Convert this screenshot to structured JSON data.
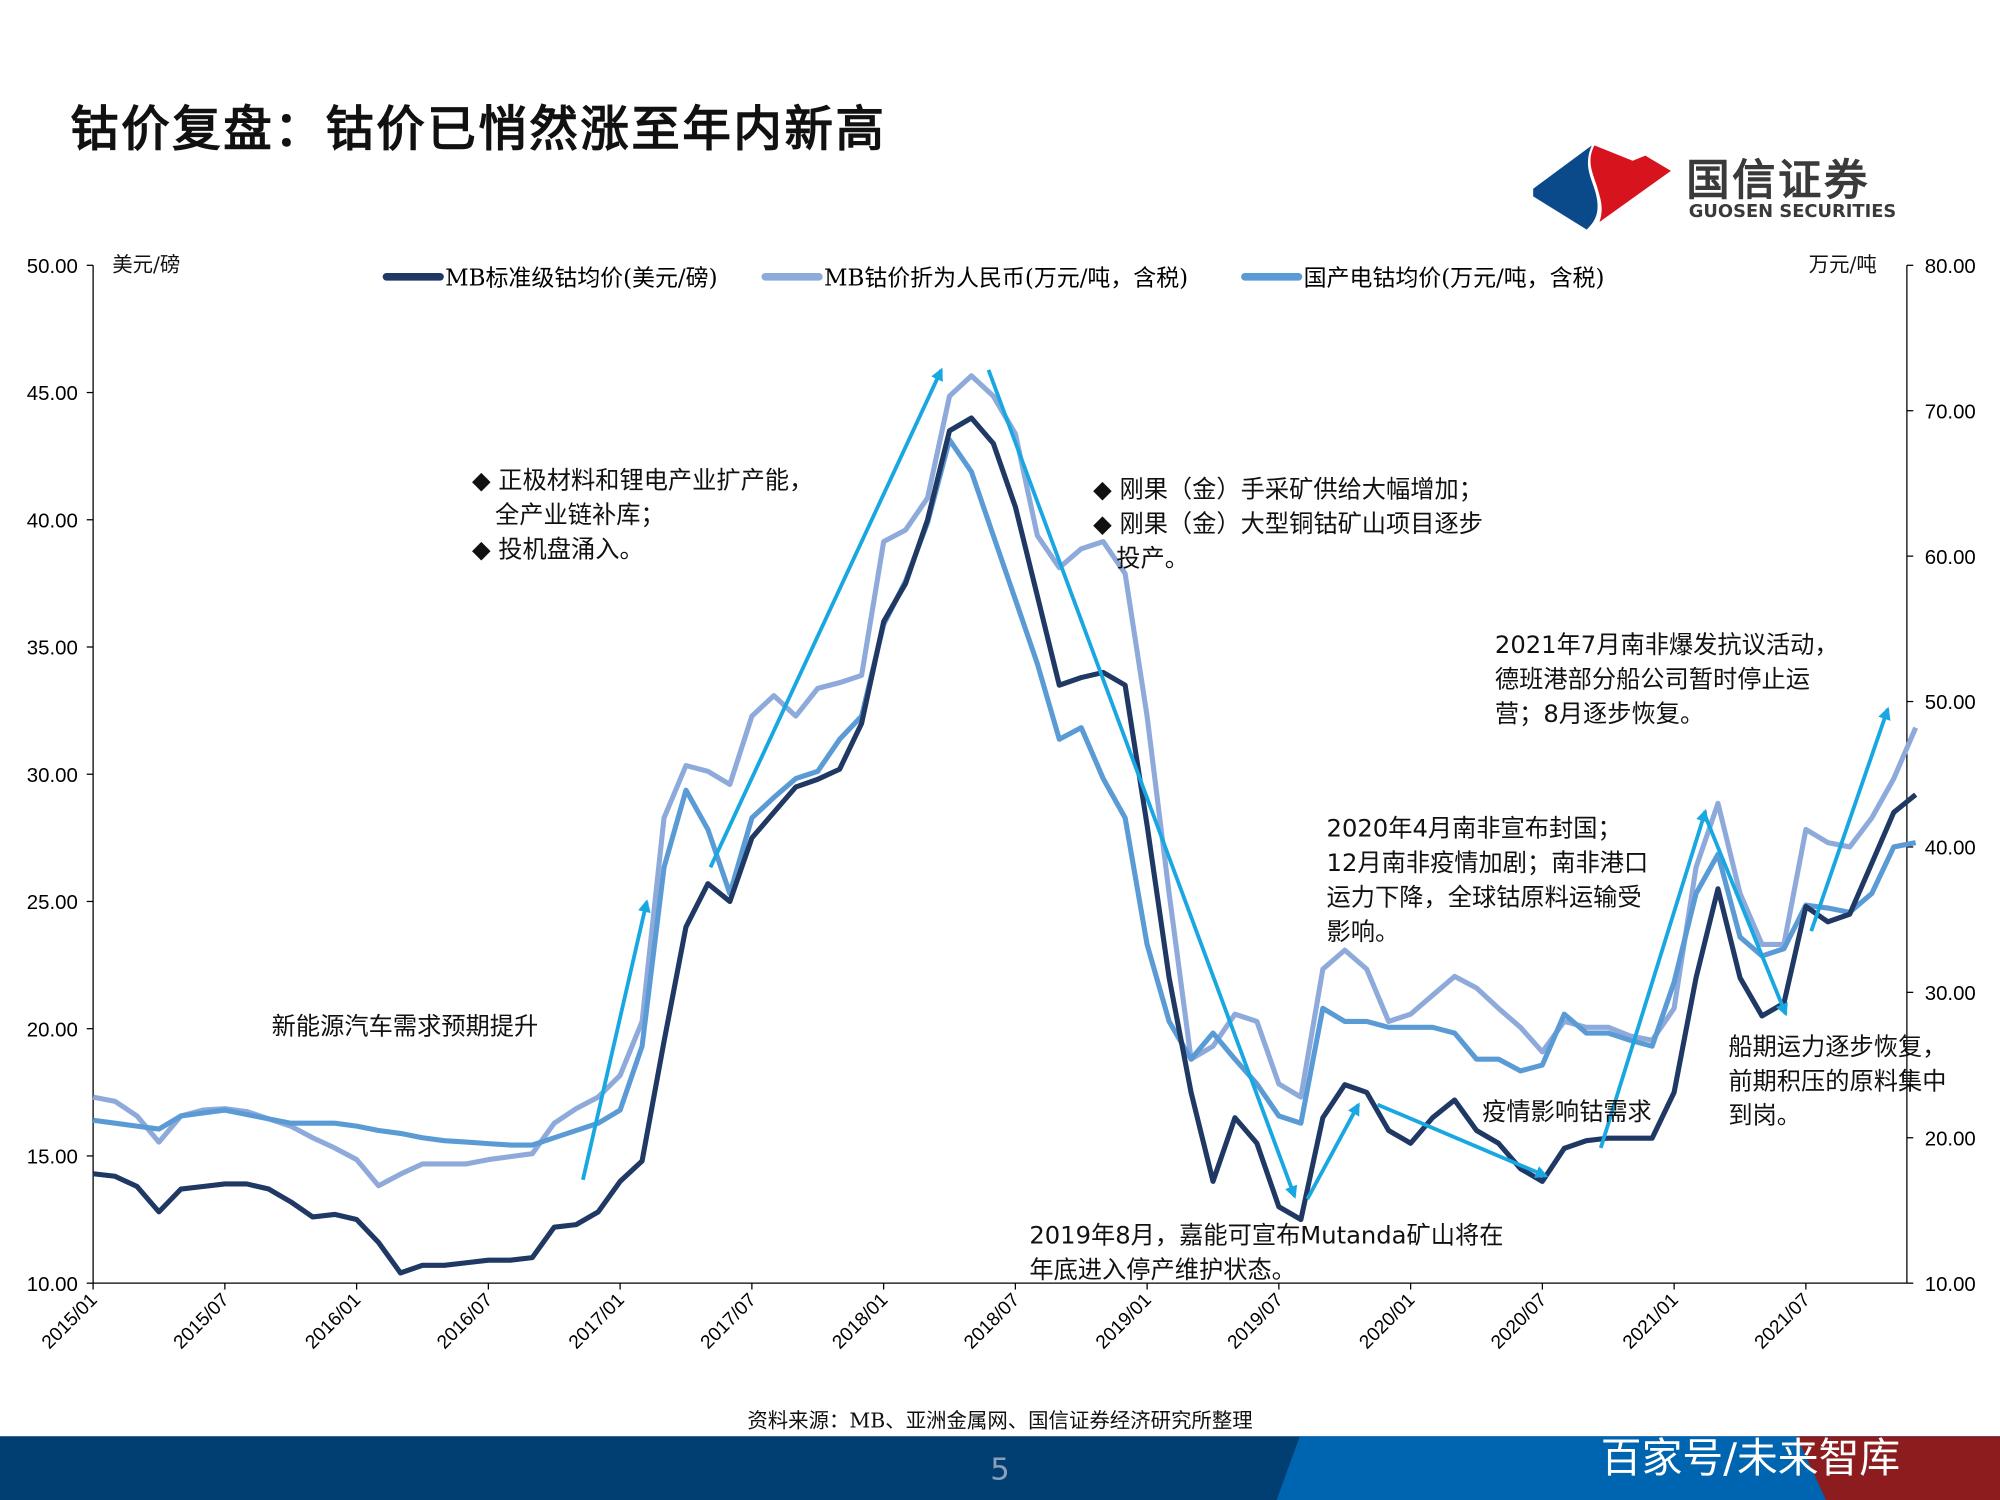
{
  "title": "钴价复盘：钴价已悄然涨至年内新高",
  "logo": {
    "cn": "国信证券",
    "en": "GUOSEN SECURITIES",
    "colors": {
      "blue": "#0b4a8a",
      "red": "#d7141d"
    }
  },
  "source": "资料来源：MB、亚洲金属网、国信证券经济研究所整理",
  "page_number": "5",
  "watermark": "百家号/未来智库",
  "chart_data": {
    "type": "line",
    "title": "",
    "ylabel_left": "美元/磅",
    "ylabel_right": "万元/吨",
    "ylim_left": [
      10,
      50
    ],
    "ylim_right": [
      10,
      80
    ],
    "yticks_left": [
      "10.00",
      "15.00",
      "20.00",
      "25.00",
      "30.00",
      "35.00",
      "40.00",
      "45.00",
      "50.00"
    ],
    "yticks_right": [
      "10.00",
      "20.00",
      "30.00",
      "40.00",
      "50.00",
      "60.00",
      "70.00",
      "80.00"
    ],
    "xlim": [
      "2015/01",
      "2021/12"
    ],
    "xticks": [
      "2015/01",
      "2015/07",
      "2016/01",
      "2016/07",
      "2017/01",
      "2017/07",
      "2018/01",
      "2018/07",
      "2019/01",
      "2019/07",
      "2020/01",
      "2020/07",
      "2021/01",
      "2021/07"
    ],
    "legend_position": "top",
    "grid": false,
    "x": [
      "2015/01",
      "2015/02",
      "2015/03",
      "2015/04",
      "2015/05",
      "2015/06",
      "2015/07",
      "2015/08",
      "2015/09",
      "2015/10",
      "2015/11",
      "2015/12",
      "2016/01",
      "2016/02",
      "2016/03",
      "2016/04",
      "2016/05",
      "2016/06",
      "2016/07",
      "2016/08",
      "2016/09",
      "2016/10",
      "2016/11",
      "2016/12",
      "2017/01",
      "2017/02",
      "2017/03",
      "2017/04",
      "2017/05",
      "2017/06",
      "2017/07",
      "2017/08",
      "2017/09",
      "2017/10",
      "2017/11",
      "2017/12",
      "2018/01",
      "2018/02",
      "2018/03",
      "2018/04",
      "2018/05",
      "2018/06",
      "2018/07",
      "2018/08",
      "2018/09",
      "2018/10",
      "2018/11",
      "2018/12",
      "2019/01",
      "2019/02",
      "2019/03",
      "2019/04",
      "2019/05",
      "2019/06",
      "2019/07",
      "2019/08",
      "2019/09",
      "2019/10",
      "2019/11",
      "2019/12",
      "2020/01",
      "2020/02",
      "2020/03",
      "2020/04",
      "2020/05",
      "2020/06",
      "2020/07",
      "2020/08",
      "2020/09",
      "2020/10",
      "2020/11",
      "2020/12",
      "2021/01",
      "2021/02",
      "2021/03",
      "2021/04",
      "2021/05",
      "2021/06",
      "2021/07",
      "2021/08",
      "2021/09",
      "2021/10",
      "2021/11",
      "2021/12"
    ],
    "series": [
      {
        "name": "MB标准级钴均价(美元/磅)",
        "axis": "left",
        "color": "#1f3864",
        "values": [
          14.3,
          14.2,
          13.8,
          12.8,
          13.7,
          13.8,
          13.9,
          13.9,
          13.7,
          13.2,
          12.6,
          12.7,
          12.5,
          11.6,
          10.4,
          10.7,
          10.7,
          10.8,
          10.9,
          10.9,
          11.0,
          12.2,
          12.3,
          12.8,
          14.0,
          14.8,
          19.5,
          24.0,
          25.7,
          25.0,
          27.5,
          28.5,
          29.5,
          29.8,
          30.2,
          32.0,
          36.0,
          37.5,
          40.0,
          43.5,
          44.0,
          43.0,
          40.5,
          37.0,
          33.5,
          33.8,
          34.0,
          33.5,
          28.0,
          22.0,
          17.5,
          14.0,
          16.5,
          15.5,
          13.0,
          12.5,
          16.5,
          17.8,
          17.5,
          16.0,
          15.5,
          16.5,
          17.2,
          16.0,
          15.5,
          14.5,
          14.0,
          15.3,
          15.6,
          15.7,
          15.7,
          15.7,
          17.5,
          22.0,
          25.5,
          22.0,
          20.5,
          21.0,
          24.8,
          24.2,
          24.5,
          26.5,
          28.5,
          29.2
        ]
      },
      {
        "name": "MB钴价折为人民币(万元/吨，含税)",
        "axis": "right",
        "color": "#8eaadb",
        "values": [
          22.8,
          22.5,
          21.5,
          19.7,
          21.5,
          21.9,
          22.0,
          21.8,
          21.3,
          20.8,
          20.0,
          19.3,
          18.5,
          16.7,
          17.5,
          18.2,
          18.2,
          18.2,
          18.5,
          18.7,
          18.9,
          21.0,
          22.0,
          22.8,
          24.3,
          28.0,
          42.0,
          45.6,
          45.2,
          44.3,
          49.0,
          50.4,
          49.0,
          50.9,
          51.3,
          51.8,
          61.0,
          61.8,
          64.0,
          71.0,
          72.4,
          71.0,
          68.4,
          61.4,
          59.2,
          60.5,
          61.0,
          58.8,
          49.0,
          36.8,
          25.4,
          26.3,
          28.5,
          28.0,
          23.7,
          22.8,
          31.6,
          32.9,
          31.6,
          28.0,
          28.5,
          29.8,
          31.1,
          30.3,
          28.9,
          27.6,
          25.9,
          28.0,
          27.6,
          27.6,
          27.0,
          26.7,
          28.9,
          38.6,
          43.0,
          36.8,
          33.3,
          33.3,
          41.2,
          40.3,
          40.0,
          42.0,
          44.7,
          48.2
        ]
      },
      {
        "name": "国产电钴均价(万元/吨，含税)",
        "axis": "right",
        "color": "#5b9bd5",
        "values": [
          21.2,
          21.0,
          20.8,
          20.6,
          21.5,
          21.7,
          21.9,
          21.6,
          21.3,
          21.0,
          21.0,
          21.0,
          20.8,
          20.5,
          20.3,
          20.0,
          19.8,
          19.7,
          19.6,
          19.5,
          19.5,
          20.0,
          20.5,
          21.0,
          21.9,
          26.3,
          38.6,
          43.9,
          41.2,
          36.8,
          42.0,
          43.4,
          44.7,
          45.2,
          47.4,
          49.0,
          55.3,
          58.3,
          62.3,
          68.0,
          65.8,
          61.4,
          57.0,
          52.6,
          47.4,
          48.2,
          44.7,
          42.0,
          33.3,
          28.0,
          25.4,
          27.2,
          25.4,
          23.7,
          21.5,
          21.0,
          28.9,
          28.0,
          28.0,
          27.6,
          27.6,
          27.6,
          27.2,
          25.4,
          25.4,
          24.6,
          25.0,
          28.5,
          27.2,
          27.2,
          26.7,
          26.3,
          30.7,
          36.8,
          39.5,
          33.8,
          32.5,
          33.0,
          36.0,
          35.8,
          35.5,
          36.8,
          40.0,
          40.3
        ]
      }
    ],
    "arrow_color": "#19a7e2",
    "annotations": [
      {
        "lines": [
          "新能源汽车需求预期提升"
        ]
      },
      {
        "lines": [
          "◆ 正极材料和锂电产业扩产能，",
          "   全产业链补库；",
          "◆ 投机盘涌入。"
        ]
      },
      {
        "lines": [
          "◆ 刚果（金）手采矿供给大幅增加；",
          "◆ 刚果（金）大型铜钴矿山项目逐步",
          "   投产。"
        ]
      },
      {
        "lines": [
          "2021年7月南非爆发抗议活动，",
          "德班港部分船公司暂时停止运",
          "营；8月逐步恢复。"
        ]
      },
      {
        "lines": [
          "2020年4月南非宣布封国；",
          "12月南非疫情加剧；南非港口",
          "运力下降，全球钴原料运输受",
          "影响。"
        ]
      },
      {
        "lines": [
          "疫情影响钴需求"
        ]
      },
      {
        "lines": [
          "船期运力逐步恢复，",
          "前期积压的原料集中",
          "到岗。"
        ]
      },
      {
        "lines": [
          "2019年8月，嘉能可宣布Mutanda矿山将在",
          "年底进入停产维护状态。"
        ]
      }
    ]
  }
}
